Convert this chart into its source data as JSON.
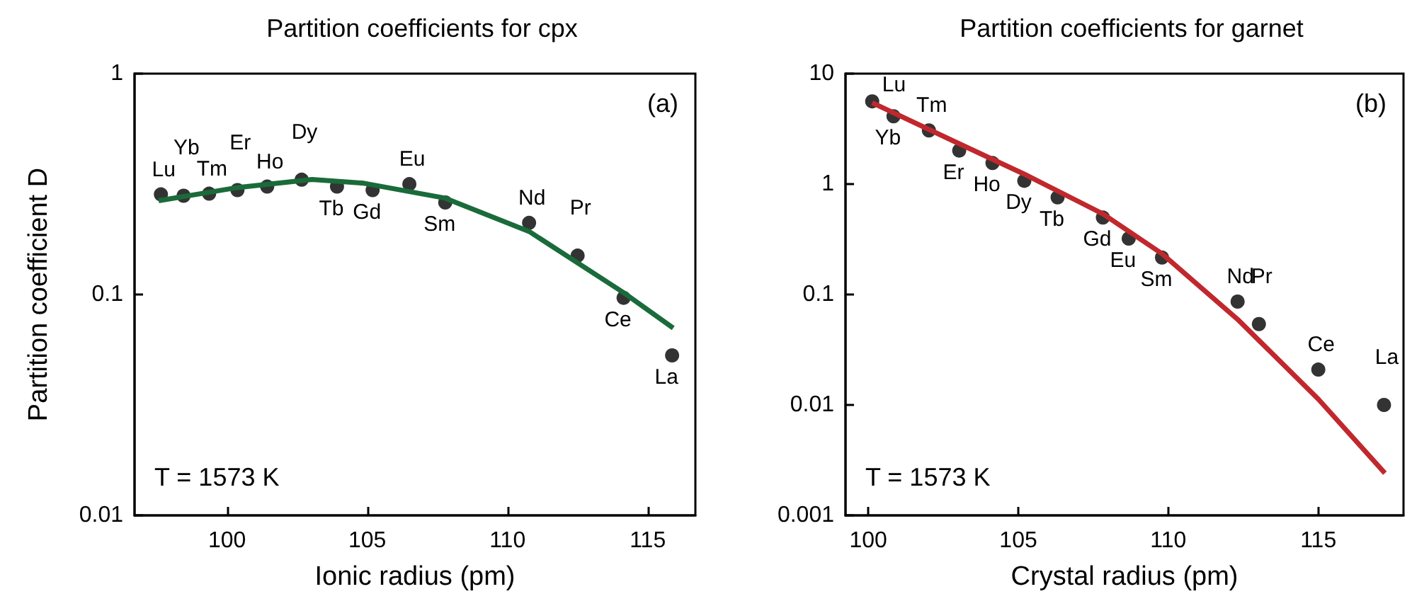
{
  "chart_data": [
    {
      "type": "scatter",
      "title": "Partition coefficients for cpx",
      "xlabel": "Ionic radius (pm)",
      "ylabel": "Partition coefficient D",
      "log": "y",
      "grid": false,
      "xlim": [
        96.7,
        116.7
      ],
      "xticks": [
        100,
        105,
        110,
        115
      ],
      "ylim": [
        0.01,
        1
      ],
      "yticks": [
        0.01,
        0.1,
        1
      ],
      "series": [
        {
          "type": "scatter",
          "color": "#000000",
          "x": [
            97.64,
            98.45,
            99.36,
            100.37,
            101.43,
            102.66,
            103.92,
            105.19,
            106.5,
            107.78,
            110.77,
            112.5,
            114.14,
            115.87
          ],
          "values": [
            0.284,
            0.28,
            0.286,
            0.297,
            0.308,
            0.331,
            0.308,
            0.297,
            0.316,
            0.261,
            0.211,
            0.15,
            0.0966,
            0.053
          ]
        },
        {
          "type": "line",
          "color": "#1a6b3a",
          "x": [
            97.56,
            100.3,
            103.03,
            104.88,
            107.78,
            110.77,
            114.14,
            115.91
          ],
          "values": [
            0.266,
            0.304,
            0.332,
            0.319,
            0.273,
            0.193,
            0.102,
            0.0705
          ]
        }
      ],
      "annotations": [
        "(a)",
        "T = 1573 K",
        {
          "text": "Lu",
          "x": 97.64,
          "y": 0.284
        },
        {
          "text": "Yb",
          "x": 98.45,
          "y": 0.28
        },
        {
          "text": "Tm",
          "x": 99.36,
          "y": 0.286
        },
        {
          "text": "Er",
          "x": 100.37,
          "y": 0.297
        },
        {
          "text": "Ho",
          "x": 101.43,
          "y": 0.308
        },
        {
          "text": "Dy",
          "x": 102.66,
          "y": 0.331
        },
        {
          "text": "Tb",
          "x": 103.92,
          "y": 0.308
        },
        {
          "text": "Gd",
          "x": 105.19,
          "y": 0.297
        },
        {
          "text": "Eu",
          "x": 106.5,
          "y": 0.316
        },
        {
          "text": "Sm",
          "x": 107.78,
          "y": 0.261
        },
        {
          "text": "Nd",
          "x": 110.77,
          "y": 0.211
        },
        {
          "text": "Pr",
          "x": 112.5,
          "y": 0.15
        },
        {
          "text": "Ce",
          "x": 114.14,
          "y": 0.0966
        },
        {
          "text": "La",
          "x": 115.87,
          "y": 0.053
        }
      ]
    },
    {
      "type": "scatter",
      "title": "Partition coefficients for garnet",
      "xlabel": "Crystal radius (pm)",
      "log": "y",
      "grid": false,
      "xlim": [
        99.24,
        117.84
      ],
      "xticks": [
        100,
        105,
        110,
        115
      ],
      "ylim": [
        0.001,
        10
      ],
      "yticks": [
        0.001,
        0.01,
        0.1,
        1,
        10
      ],
      "series": [
        {
          "type": "scatter",
          "color": "#000000",
          "x": [
            100.13,
            100.84,
            102.02,
            103.03,
            104.14,
            105.2,
            106.31,
            107.82,
            108.68,
            109.79,
            112.31,
            113.02,
            115.0,
            117.19
          ],
          "values": [
            5.61,
            4.11,
            3.06,
            2.01,
            1.55,
            1.07,
            0.757,
            0.497,
            0.321,
            0.216,
            0.0863,
            0.054,
            0.0209,
            0.01
          ]
        },
        {
          "type": "line",
          "color": "#c0282d",
          "x": [
            100.13,
            102.84,
            105.2,
            107.82,
            109.79,
            112.31,
            115.0,
            117.22
          ],
          "values": [
            5.45,
            2.45,
            1.23,
            0.537,
            0.234,
            0.0596,
            0.0113,
            0.00241
          ]
        }
      ],
      "annotations": [
        "(b)",
        "T = 1573 K",
        {
          "text": "Lu",
          "x": 100.13,
          "y": 5.61
        },
        {
          "text": "Yb",
          "x": 100.84,
          "y": 4.11
        },
        {
          "text": "Tm",
          "x": 102.02,
          "y": 3.06
        },
        {
          "text": "Er",
          "x": 103.03,
          "y": 2.01
        },
        {
          "text": "Ho",
          "x": 104.14,
          "y": 1.55
        },
        {
          "text": "Dy",
          "x": 105.2,
          "y": 1.07
        },
        {
          "text": "Tb",
          "x": 106.31,
          "y": 0.757
        },
        {
          "text": "Gd",
          "x": 107.82,
          "y": 0.497
        },
        {
          "text": "Eu",
          "x": 108.68,
          "y": 0.321
        },
        {
          "text": "Sm",
          "x": 109.79,
          "y": 0.216
        },
        {
          "text": "Nd",
          "x": 112.31,
          "y": 0.0863
        },
        {
          "text": "Pr",
          "x": 113.02,
          "y": 0.054
        },
        {
          "text": "Ce",
          "x": 115.0,
          "y": 0.0209
        },
        {
          "text": "La",
          "x": 117.19,
          "y": 0.01
        }
      ]
    }
  ]
}
